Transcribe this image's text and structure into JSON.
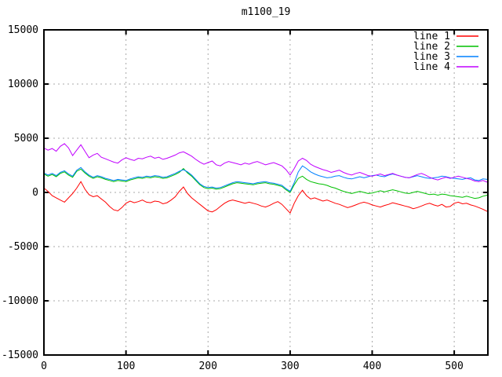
{
  "title": "m1100_19",
  "chart_data": {
    "type": "line",
    "title": "m1100_19",
    "xlabel": "",
    "ylabel": "",
    "xlim": [
      0,
      541
    ],
    "ylim": [
      -15000,
      15000
    ],
    "xticks": [
      0,
      100,
      200,
      300,
      400,
      500
    ],
    "yticks": [
      -15000,
      -10000,
      -5000,
      0,
      5000,
      10000,
      15000
    ],
    "grid": true,
    "grid_color": "#a8a8a8",
    "legend_position": "top-right-inside",
    "x_start": 0,
    "x_step": 5,
    "series": [
      {
        "name": "line 1",
        "color": "#ff0000",
        "values": [
          400,
          100,
          -300,
          -500,
          -700,
          -900,
          -500,
          -100,
          400,
          1000,
          300,
          -200,
          -400,
          -300,
          -600,
          -900,
          -1300,
          -1600,
          -1700,
          -1400,
          -1000,
          -800,
          -950,
          -850,
          -700,
          -900,
          -950,
          -800,
          -850,
          -1050,
          -950,
          -700,
          -400,
          100,
          500,
          -100,
          -500,
          -800,
          -1100,
          -1400,
          -1700,
          -1800,
          -1600,
          -1300,
          -1000,
          -800,
          -700,
          -800,
          -900,
          -1000,
          -900,
          -1000,
          -1100,
          -1250,
          -1350,
          -1200,
          -1000,
          -850,
          -1100,
          -1500,
          -1900,
          -1000,
          -300,
          200,
          -300,
          -600,
          -500,
          -650,
          -800,
          -700,
          -850,
          -1000,
          -1100,
          -1250,
          -1400,
          -1300,
          -1150,
          -1000,
          -900,
          -1000,
          -1150,
          -1250,
          -1350,
          -1200,
          -1100,
          -950,
          -1050,
          -1150,
          -1250,
          -1350,
          -1500,
          -1400,
          -1250,
          -1100,
          -1000,
          -1150,
          -1250,
          -1100,
          -1350,
          -1300,
          -1000,
          -900,
          -1050,
          -1000,
          -1150,
          -1250,
          -1400,
          -1550,
          -1750
        ]
      },
      {
        "name": "line 2",
        "color": "#00c000",
        "values": [
          1700,
          1500,
          1650,
          1450,
          1750,
          1900,
          1600,
          1400,
          1950,
          2150,
          1800,
          1500,
          1300,
          1450,
          1350,
          1200,
          1100,
          1000,
          1100,
          1050,
          1000,
          1150,
          1250,
          1350,
          1300,
          1400,
          1350,
          1450,
          1400,
          1300,
          1350,
          1500,
          1650,
          1850,
          2200,
          1800,
          1500,
          1100,
          700,
          450,
          350,
          400,
          300,
          350,
          500,
          650,
          800,
          900,
          850,
          800,
          750,
          700,
          800,
          850,
          900,
          800,
          750,
          650,
          550,
          250,
          0,
          700,
          1300,
          1500,
          1200,
          1000,
          900,
          800,
          750,
          650,
          500,
          400,
          250,
          100,
          0,
          -100,
          0,
          100,
          0,
          -100,
          -50,
          50,
          150,
          50,
          150,
          250,
          150,
          50,
          -50,
          -100,
          0,
          100,
          0,
          -100,
          -200,
          -150,
          -250,
          -150,
          -200,
          -300,
          -350,
          -400,
          -450,
          -350,
          -450,
          -550,
          -500,
          -350,
          -250
        ]
      },
      {
        "name": "line 3",
        "color": "#0080ff",
        "values": [
          1800,
          1600,
          1750,
          1550,
          1850,
          2000,
          1700,
          1500,
          2050,
          2300,
          1900,
          1600,
          1400,
          1550,
          1450,
          1300,
          1200,
          1100,
          1200,
          1150,
          1100,
          1250,
          1350,
          1450,
          1400,
          1500,
          1450,
          1550,
          1500,
          1400,
          1450,
          1600,
          1750,
          1950,
          2100,
          1900,
          1600,
          1200,
          800,
          550,
          450,
          500,
          400,
          450,
          600,
          750,
          900,
          1000,
          950,
          900,
          850,
          800,
          900,
          950,
          1000,
          900,
          850,
          750,
          650,
          350,
          100,
          900,
          1900,
          2450,
          2200,
          1900,
          1700,
          1550,
          1450,
          1350,
          1400,
          1500,
          1550,
          1400,
          1300,
          1250,
          1350,
          1450,
          1350,
          1450,
          1550,
          1600,
          1500,
          1450,
          1600,
          1700,
          1600,
          1500,
          1400,
          1350,
          1450,
          1550,
          1450,
          1350,
          1300,
          1350,
          1400,
          1500,
          1450,
          1350,
          1300,
          1250,
          1200,
          1300,
          1350,
          1150,
          1100,
          1250,
          1200
        ]
      },
      {
        "name": "line 4",
        "color": "#c000ff",
        "values": [
          4100,
          3900,
          4050,
          3800,
          4250,
          4500,
          4100,
          3400,
          3900,
          4400,
          3800,
          3200,
          3450,
          3600,
          3250,
          3100,
          2950,
          2800,
          2700,
          3000,
          3200,
          3050,
          2950,
          3150,
          3100,
          3250,
          3350,
          3150,
          3250,
          3050,
          3150,
          3300,
          3450,
          3650,
          3750,
          3550,
          3350,
          3050,
          2800,
          2600,
          2750,
          2900,
          2550,
          2450,
          2700,
          2850,
          2750,
          2650,
          2550,
          2700,
          2600,
          2750,
          2850,
          2700,
          2550,
          2650,
          2750,
          2600,
          2450,
          2100,
          1600,
          2200,
          2900,
          3150,
          2950,
          2600,
          2400,
          2250,
          2100,
          2000,
          1850,
          1950,
          2050,
          1850,
          1700,
          1600,
          1750,
          1850,
          1700,
          1550,
          1500,
          1600,
          1700,
          1550,
          1650,
          1750,
          1600,
          1500,
          1400,
          1350,
          1500,
          1650,
          1750,
          1600,
          1400,
          1250,
          1150,
          1300,
          1400,
          1300,
          1400,
          1500,
          1400,
          1300,
          1200,
          1050,
          1000,
          1100,
          950
        ]
      }
    ]
  }
}
